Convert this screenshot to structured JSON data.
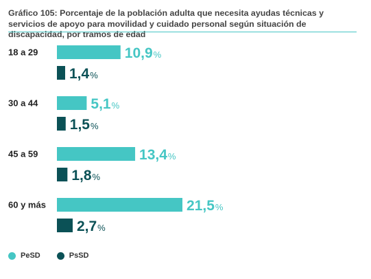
{
  "chart_data": {
    "type": "bar",
    "orientation": "horizontal",
    "title": "Gráfico 105: Porcentaje de la población adulta que necesita ayudas técnicas y servicios de apoyo para movilidad y cuidado personal según situación de discapacidad, por tramos de edad",
    "categories": [
      "18 a 29",
      "30 a 44",
      "45 a 59",
      "60 y más"
    ],
    "series": [
      {
        "name": "PeSD",
        "color": "#45C6C4",
        "values": [
          10.9,
          5.1,
          13.4,
          21.5
        ],
        "labels": [
          "10,9",
          "5,1",
          "13,4",
          "21,5"
        ]
      },
      {
        "name": "PsSD",
        "color": "#0B5156",
        "values": [
          1.4,
          1.5,
          1.8,
          2.7
        ],
        "labels": [
          "1,4",
          "1,5",
          "1,8",
          "2,7"
        ]
      }
    ],
    "unit": "%",
    "grid": false,
    "legend_position": "bottom-left"
  }
}
